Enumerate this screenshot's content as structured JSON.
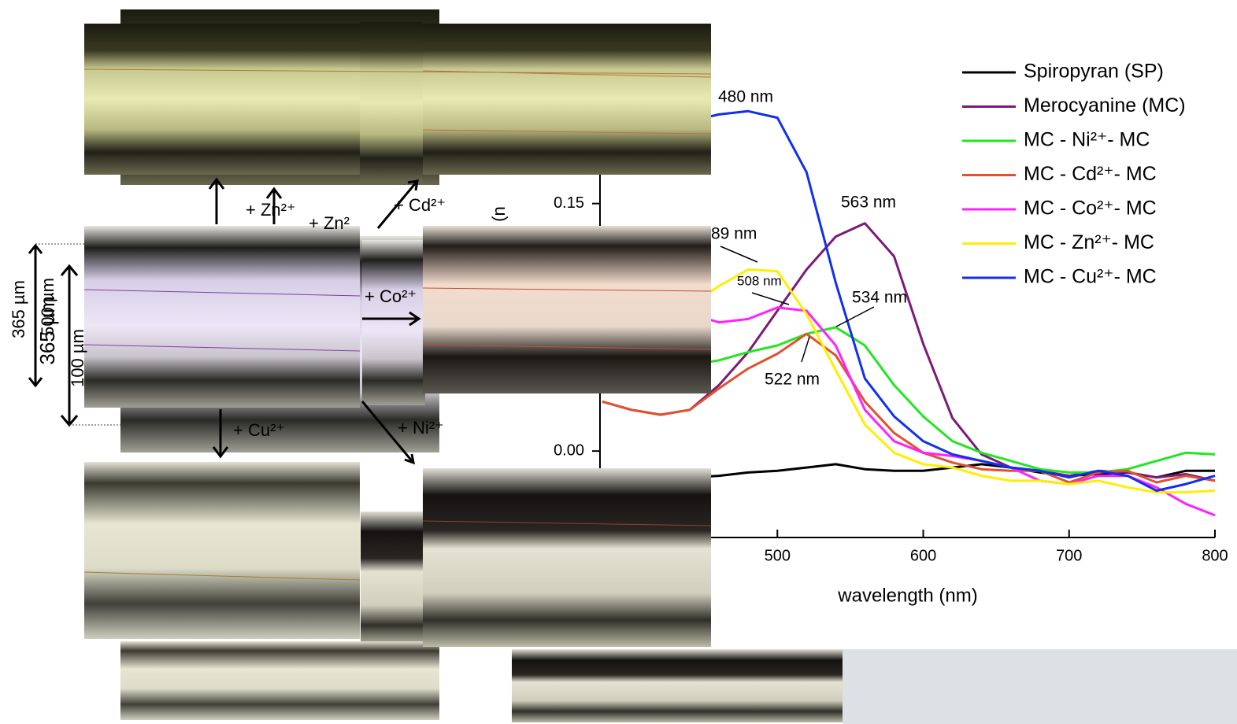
{
  "chart_data": {
    "type": "line",
    "ylabel": "u)",
    "xlabel": "wavelength (nm)",
    "x": [
      380,
      400,
      420,
      440,
      460,
      480,
      500,
      520,
      540,
      560,
      580,
      600,
      620,
      640,
      660,
      680,
      700,
      720,
      740,
      760,
      780,
      800
    ],
    "xlim": [
      380,
      800
    ],
    "xticks": [
      500,
      600,
      700,
      800
    ],
    "ylim": [
      -0.05,
      0.25
    ],
    "yticks": [
      {
        "value": 0,
        "label": "0.00"
      },
      0.15
    ],
    "series": [
      {
        "name": "Spiropyran (SP)",
        "color": "#000000",
        "values": [
          -0.016,
          -0.016,
          -0.016,
          -0.016,
          -0.015,
          -0.013,
          -0.012,
          -0.01,
          -0.008,
          -0.011,
          -0.012,
          -0.012,
          -0.01,
          -0.008,
          -0.01,
          -0.013,
          -0.015,
          -0.014,
          -0.013,
          -0.016,
          -0.012,
          -0.012
        ]
      },
      {
        "name": "Merocyanine (MC)",
        "color": "#7b1a7b",
        "values": [
          0.03,
          0.025,
          0.022,
          0.025,
          0.04,
          0.06,
          0.085,
          0.11,
          0.13,
          0.138,
          0.118,
          0.065,
          0.02,
          -0.002,
          -0.01,
          -0.012,
          -0.015,
          -0.012,
          -0.013,
          -0.016,
          -0.014,
          -0.018
        ]
      },
      {
        "name": "MC - Ni²⁺- MC",
        "color": "#22e622",
        "values": [
          0.055,
          0.053,
          0.052,
          0.052,
          0.055,
          0.06,
          0.064,
          0.071,
          0.075,
          0.064,
          0.04,
          0.021,
          0.006,
          -0.001,
          -0.006,
          -0.011,
          -0.013,
          -0.013,
          -0.011,
          -0.006,
          -0.001,
          -0.002
        ]
      },
      {
        "name": "MC - Cd²⁺- MC",
        "color": "#e0522c",
        "values": [
          0.03,
          0.025,
          0.022,
          0.025,
          0.038,
          0.05,
          0.059,
          0.071,
          0.058,
          0.03,
          0.011,
          -0.001,
          -0.007,
          -0.011,
          -0.012,
          -0.012,
          -0.019,
          -0.013,
          -0.012,
          -0.019,
          -0.015,
          -0.018
        ]
      },
      {
        "name": "MC - Co²⁺- MC",
        "color": "#ff22ff",
        "values": [
          0.09,
          0.088,
          0.086,
          0.083,
          0.078,
          0.08,
          0.087,
          0.085,
          0.064,
          0.025,
          0.006,
          -0.001,
          -0.003,
          -0.006,
          -0.01,
          -0.018,
          -0.02,
          -0.015,
          -0.015,
          -0.022,
          -0.032,
          -0.039
        ]
      },
      {
        "name": "MC - Zn²⁺- MC",
        "color": "#ffee00",
        "values": [
          0.07,
          0.075,
          0.08,
          0.088,
          0.1,
          0.11,
          0.109,
          0.083,
          0.049,
          0.016,
          -0.001,
          -0.008,
          -0.01,
          -0.015,
          -0.018,
          -0.018,
          -0.02,
          -0.018,
          -0.022,
          -0.025,
          -0.025,
          -0.024
        ]
      },
      {
        "name": "MC - Cu²⁺- MC",
        "color": "#1030ee",
        "values": [
          0.18,
          0.19,
          0.196,
          0.2,
          0.204,
          0.206,
          0.202,
          0.169,
          0.102,
          0.044,
          0.021,
          0.006,
          -0.002,
          -0.006,
          -0.01,
          -0.012,
          -0.016,
          -0.012,
          -0.015,
          -0.024,
          -0.02,
          -0.015
        ]
      }
    ],
    "annotations": [
      "480 nm",
      "89 nm",
      "508 nm",
      "534 nm",
      "563 nm",
      "522 nm"
    ]
  },
  "micrograph_labels": [
    "+ Zn²⁺",
    "+ Zn²",
    "+ Cd²⁺",
    "+ Co²⁺",
    "+ Cu²⁺",
    "+ Ni²⁺",
    "365 µm",
    "365 µm",
    "500 µm",
    "100 µm"
  ]
}
